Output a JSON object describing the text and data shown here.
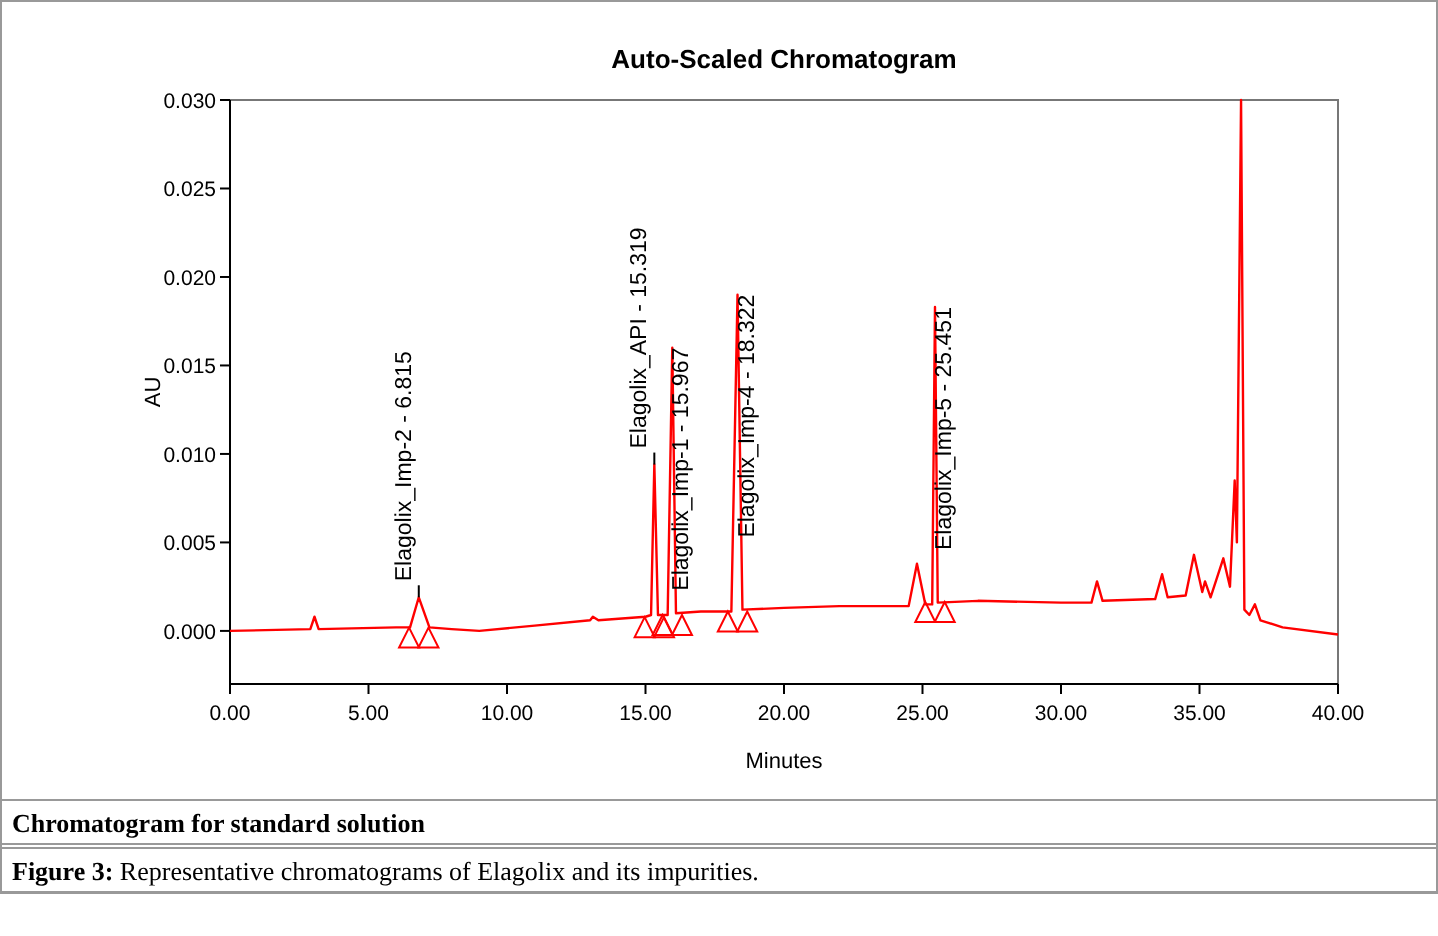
{
  "chart_data": {
    "type": "line",
    "title": "Auto-Scaled Chromatogram",
    "xlabel": "Minutes",
    "ylabel": "AU",
    "x": [
      0,
      2.9,
      3.05,
      3.2,
      6.0,
      6.5,
      6.815,
      7.2,
      8,
      9,
      11,
      13,
      13.1,
      13.3,
      15.0,
      15.2,
      15.319,
      15.45,
      15.8,
      15.967,
      16.1,
      17,
      18.1,
      18.322,
      18.5,
      20,
      22,
      24.5,
      24.8,
      25.1,
      25.35,
      25.451,
      25.55,
      27,
      30,
      31.1,
      31.3,
      31.5,
      33.4,
      33.65,
      33.85,
      34.5,
      34.8,
      35.1,
      35.2,
      35.4,
      35.86,
      36.1,
      36.27,
      36.35,
      36.5,
      36.62,
      36.8,
      37.0,
      37.2,
      38,
      40
    ],
    "series": [
      {
        "color": "#ff0000",
        "values": [
          0,
          0.0001,
          0.0008,
          0.0001,
          0.0002,
          0.0002,
          0.0019,
          0.0002,
          0.0001,
          0,
          0.0003,
          0.0006,
          0.0008,
          0.0006,
          0.0008,
          0.0009,
          0.0094,
          0.0009,
          0.0009,
          0.016,
          0.001,
          0.0011,
          0.0011,
          0.019,
          0.0012,
          0.0013,
          0.0014,
          0.0014,
          0.0038,
          0.0015,
          0.0015,
          0.0183,
          0.0016,
          0.0017,
          0.0016,
          0.0016,
          0.0028,
          0.0017,
          0.0018,
          0.0032,
          0.0019,
          0.002,
          0.0043,
          0.0022,
          0.0028,
          0.0019,
          0.0041,
          0.0025,
          0.0085,
          0.005,
          0.03,
          0.0012,
          0.0009,
          0.0015,
          0.0006,
          0.0002,
          -0.0002
        ]
      }
    ],
    "xlim": [
      0,
      40
    ],
    "xticks": [
      {
        "value": 0,
        "label": "0.00"
      },
      {
        "value": 5,
        "label": "5.00"
      },
      {
        "value": 10,
        "label": "10.00"
      },
      {
        "value": 15,
        "label": "15.00"
      },
      {
        "value": 20,
        "label": "20.00"
      },
      {
        "value": 25,
        "label": "25.00"
      },
      {
        "value": 30,
        "label": "30.00"
      },
      {
        "value": 35,
        "label": "35.00"
      },
      {
        "value": 40,
        "label": "40.00"
      }
    ],
    "ylim": [
      -0.003,
      0.03
    ],
    "yticks": [
      {
        "value": 0,
        "label": "0.000"
      },
      {
        "value": 0.005,
        "label": "0.005"
      },
      {
        "value": 0.01,
        "label": "0.010"
      },
      {
        "value": 0.015,
        "label": "0.015"
      },
      {
        "value": 0.02,
        "label": "0.020"
      },
      {
        "value": 0.025,
        "label": "0.025"
      },
      {
        "value": 0.03,
        "label": "0.030"
      }
    ],
    "grid": false,
    "marker": "none",
    "line_style": "solid",
    "annotations": [
      {
        "text": "Elagolix_Imp-2 - 6.815",
        "x": 6.815,
        "y": 0.0019
      },
      {
        "text": "Elagolix_API - 15.319",
        "x": 15.319,
        "y": 0.0094
      },
      {
        "text": "Elagolix_Imp-1 - 15.967",
        "x": 15.967,
        "y": 0.016
      },
      {
        "text": "Elagolix_Imp-4 - 18.322",
        "x": 18.322,
        "y": 0.019
      },
      {
        "text": "Elagolix_Imp-5 - 25.451",
        "x": 25.451,
        "y": 0.0183
      },
      "Chromatogram for standard solution",
      "Figure 3: Representative chromatograms of Elagolix and its impurities."
    ]
  }
}
